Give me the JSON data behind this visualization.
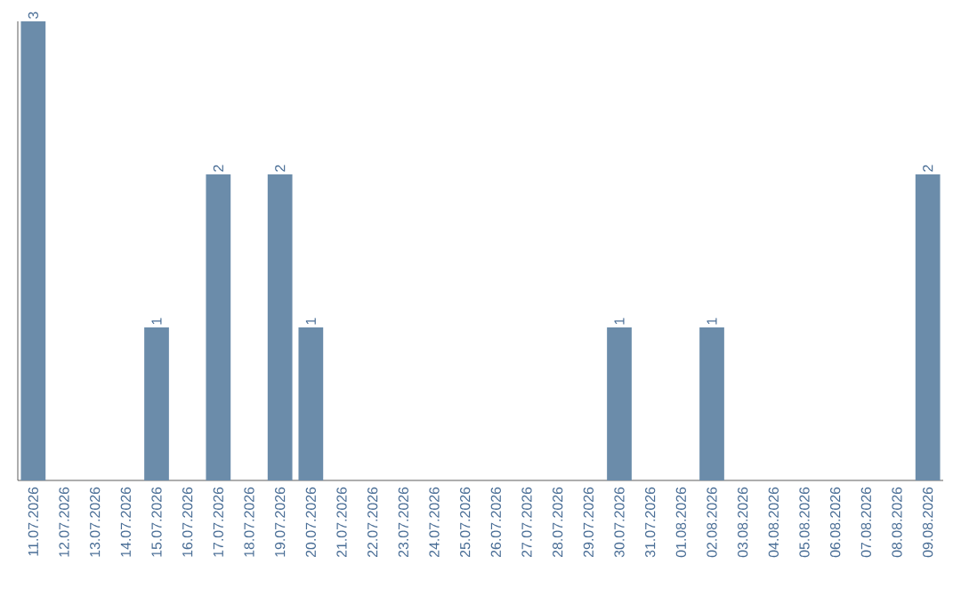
{
  "chart_data": {
    "type": "bar",
    "categories": [
      "11.07.2026",
      "12.07.2026",
      "13.07.2026",
      "14.07.2026",
      "15.07.2026",
      "16.07.2026",
      "17.07.2026",
      "18.07.2026",
      "19.07.2026",
      "20.07.2026",
      "21.07.2026",
      "22.07.2026",
      "23.07.2026",
      "24.07.2026",
      "25.07.2026",
      "26.07.2026",
      "27.07.2026",
      "28.07.2026",
      "29.07.2026",
      "30.07.2026",
      "31.07.2026",
      "01.08.2026",
      "02.08.2026",
      "03.08.2026",
      "04.08.2026",
      "05.08.2026",
      "06.08.2026",
      "07.08.2026",
      "08.08.2026",
      "09.08.2026"
    ],
    "values": [
      3,
      0,
      0,
      0,
      1,
      0,
      2,
      0,
      2,
      1,
      0,
      0,
      0,
      0,
      0,
      0,
      0,
      0,
      0,
      1,
      0,
      0,
      1,
      0,
      0,
      0,
      0,
      0,
      0,
      2
    ],
    "value_labels": [
      "3",
      null,
      null,
      null,
      "1",
      null,
      "2",
      null,
      "2",
      "1",
      null,
      null,
      null,
      null,
      null,
      null,
      null,
      null,
      null,
      "1",
      null,
      null,
      "1",
      null,
      null,
      null,
      null,
      null,
      null,
      "2"
    ],
    "color": "#6b8caa",
    "ylim": [
      0,
      3
    ],
    "tick_labels": "x",
    "grid": false
  }
}
